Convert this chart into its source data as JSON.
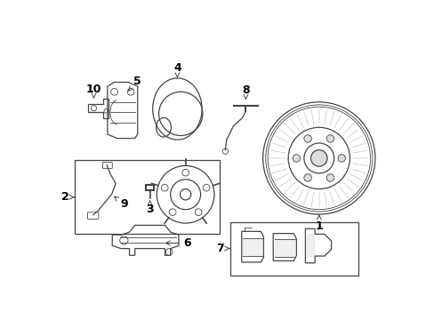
{
  "bg_color": "#ffffff",
  "line_color": "#444444",
  "label_color": "#000000",
  "fig_width": 4.89,
  "fig_height": 3.6,
  "dpi": 100
}
